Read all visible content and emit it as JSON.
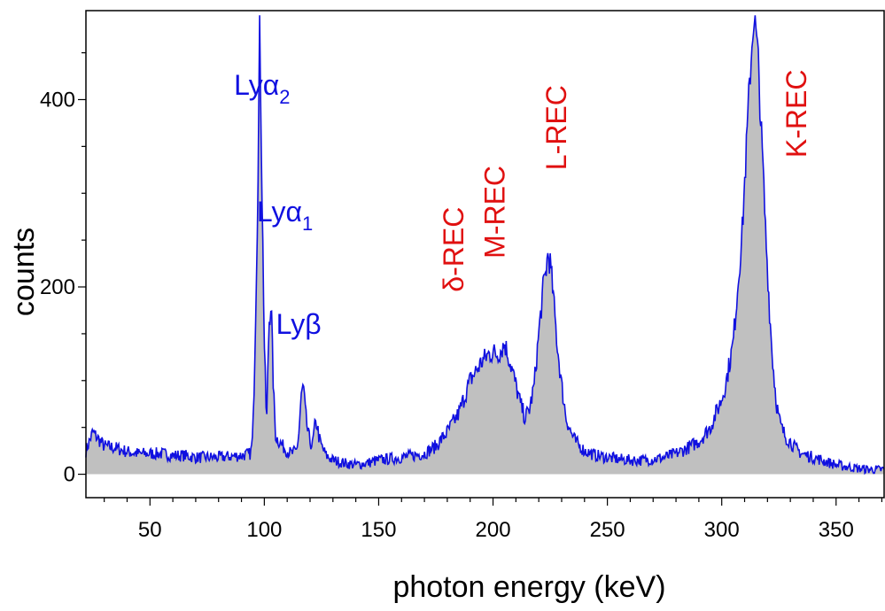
{
  "chart_data": {
    "type": "area",
    "xlabel": "photon energy (keV)",
    "ylabel": "counts",
    "xlim": [
      22,
      371
    ],
    "ylim": [
      -25,
      495
    ],
    "xticks": [
      50,
      100,
      150,
      200,
      250,
      300,
      350
    ],
    "yticks": [
      0,
      200,
      400
    ],
    "grid": false,
    "colors": {
      "line": "#1010e0",
      "fill": "#c0c0c0",
      "label_blue": "#1010e0",
      "label_red": "#e01010"
    },
    "annotations": [
      {
        "id": "lya2",
        "text": "Lyα",
        "sub": "2",
        "color": "blue",
        "x": 99,
        "y": 405
      },
      {
        "id": "lya1",
        "text": "Lyα",
        "sub": "1",
        "color": "blue",
        "x": 109,
        "y": 270
      },
      {
        "id": "lyb",
        "text": "Lyβ",
        "color": "blue",
        "x": 115,
        "y": 150
      },
      {
        "id": "delta",
        "text": "δ-REC",
        "color": "red",
        "x": 187,
        "y": 240
      },
      {
        "id": "mrec",
        "text": "M-REC",
        "color": "red",
        "x": 205,
        "y": 280
      },
      {
        "id": "lrec",
        "text": "L-REC",
        "color": "red",
        "x": 232,
        "y": 370
      },
      {
        "id": "krec",
        "text": "K-REC",
        "color": "red",
        "x": 337,
        "y": 385
      }
    ],
    "series": [
      {
        "x": [
          22,
          25,
          30,
          35,
          40,
          45,
          50,
          55,
          60,
          65,
          70,
          75,
          80,
          85,
          90,
          94,
          95,
          96,
          97,
          98,
          99,
          100,
          101,
          102,
          103,
          104,
          105,
          108,
          110,
          112,
          114,
          115,
          116,
          117,
          118,
          119,
          120,
          121,
          122,
          123,
          124,
          125,
          127,
          130,
          135,
          140,
          145,
          150,
          160,
          170,
          175,
          180,
          185,
          190,
          195,
          198,
          200,
          202,
          204,
          205,
          206,
          208,
          210,
          212,
          214,
          216,
          218,
          220,
          222,
          223,
          224,
          225,
          226,
          228,
          230,
          232,
          234,
          236,
          238,
          240,
          245,
          250,
          255,
          260,
          265,
          270,
          275,
          280,
          285,
          290,
          295,
          300,
          302,
          305,
          307,
          309,
          310,
          311,
          312,
          313,
          314,
          315,
          316,
          317,
          318,
          319,
          320,
          321,
          322,
          323,
          324,
          325,
          326,
          328,
          330,
          332,
          335,
          340,
          345,
          350,
          355,
          360,
          365,
          371
        ],
        "y": [
          25,
          45,
          30,
          28,
          24,
          22,
          22,
          22,
          20,
          20,
          18,
          18,
          18,
          19,
          20,
          22,
          40,
          150,
          280,
          482,
          300,
          140,
          50,
          160,
          185,
          90,
          40,
          30,
          25,
          22,
          25,
          40,
          80,
          95,
          65,
          45,
          35,
          30,
          50,
          55,
          38,
          30,
          20,
          15,
          12,
          10,
          12,
          15,
          18,
          22,
          30,
          45,
          65,
          100,
          120,
          128,
          130,
          128,
          135,
          140,
          132,
          115,
          95,
          75,
          60,
          70,
          95,
          150,
          200,
          215,
          235,
          225,
          200,
          140,
          95,
          60,
          45,
          35,
          30,
          25,
          20,
          18,
          16,
          15,
          15,
          16,
          18,
          22,
          28,
          35,
          50,
          80,
          100,
          140,
          200,
          260,
          310,
          360,
          410,
          450,
          490,
          470,
          440,
          380,
          330,
          270,
          220,
          170,
          130,
          100,
          75,
          60,
          50,
          40,
          35,
          28,
          22,
          18,
          14,
          10,
          8,
          6,
          5,
          5
        ]
      }
    ]
  }
}
